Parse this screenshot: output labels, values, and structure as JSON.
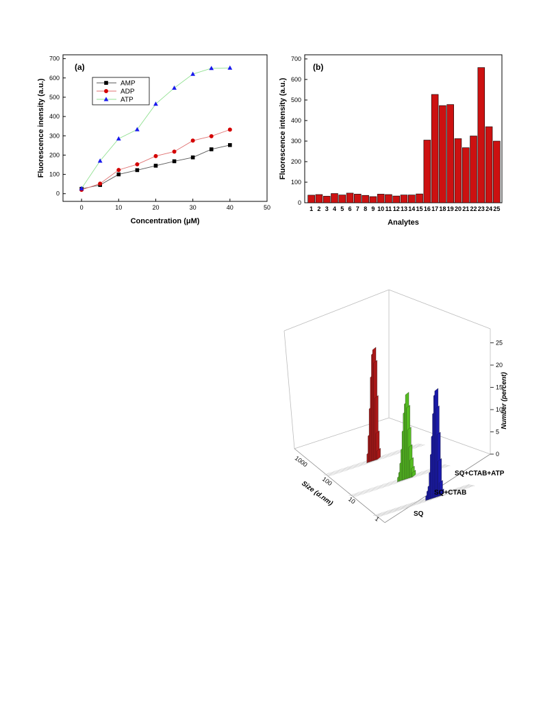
{
  "chart_data": [
    {
      "type": "line",
      "panel_label": "(a)",
      "xlabel": "Concentration (μM)",
      "ylabel": "Fluorescence inensity (a.u.)",
      "xlim": [
        -5,
        50
      ],
      "ylim": [
        -40,
        720
      ],
      "x_ticks": [
        "0",
        "10",
        "20",
        "30",
        "40",
        "50"
      ],
      "y_ticks": [
        "0",
        "100",
        "200",
        "300",
        "400",
        "500",
        "600",
        "700"
      ],
      "x": [
        0,
        5,
        10,
        15,
        20,
        25,
        30,
        35,
        40
      ],
      "legend_position": "upper-left",
      "series": [
        {
          "name": "AMP",
          "color": "#000000",
          "line_color": "#555555",
          "marker": "square",
          "values": [
            25,
            45,
            100,
            122,
            145,
            168,
            188,
            230,
            252
          ]
        },
        {
          "name": "ADP",
          "color": "#d40000",
          "line_color": "#e07070",
          "marker": "circle",
          "values": [
            20,
            52,
            123,
            152,
            195,
            218,
            275,
            298,
            332
          ]
        },
        {
          "name": "ATP",
          "color": "#1a1aee",
          "line_color": "#90e090",
          "marker": "triangle",
          "values": [
            27,
            170,
            285,
            333,
            465,
            548,
            620,
            650,
            652
          ]
        }
      ]
    },
    {
      "type": "bar",
      "panel_label": "(b)",
      "xlabel": "Analytes",
      "ylabel": "Fluorescence intensity (a.u.)",
      "ylim": [
        0,
        720
      ],
      "y_ticks": [
        "0",
        "100",
        "200",
        "300",
        "400",
        "500",
        "600",
        "700"
      ],
      "color": "#cc1111",
      "categories": [
        "1",
        "2",
        "3",
        "4",
        "5",
        "6",
        "7",
        "8",
        "9",
        "10",
        "11",
        "12",
        "13",
        "14",
        "15",
        "16",
        "17",
        "18",
        "19",
        "20",
        "21",
        "22",
        "23",
        "24",
        "25"
      ],
      "values": [
        37,
        40,
        32,
        45,
        38,
        47,
        42,
        36,
        30,
        42,
        40,
        33,
        38,
        38,
        43,
        305,
        527,
        473,
        478,
        312,
        268,
        325,
        658,
        370,
        300
      ]
    },
    {
      "type": "bar",
      "style": "3d-waterfall",
      "xlabel": "Size (d.nm)",
      "zlabel": "Number (percent)",
      "size_ticks": [
        "1",
        "10",
        "100",
        "1000"
      ],
      "z_ticks": [
        "0",
        "5",
        "10",
        "15",
        "20",
        "25"
      ],
      "zlim": [
        0,
        27
      ],
      "series": [
        {
          "name": "SQ",
          "color": "#aa1818",
          "peak_size_dnm": 1000,
          "values": [
            2,
            6,
            12,
            19,
            24,
            25,
            22,
            14,
            6,
            2
          ]
        },
        {
          "name": "SQ+CTAB",
          "color": "#55bb22",
          "peak_size_dnm": 100,
          "values": [
            1,
            2,
            4,
            7,
            11,
            15,
            17,
            19,
            16,
            11,
            7,
            4,
            2,
            1
          ]
        },
        {
          "name": "SQ+CTAB+ATP",
          "color": "#1a1aaa",
          "peak_size_dnm": 15,
          "values": [
            1,
            2,
            3,
            6,
            10,
            14,
            19,
            23,
            24,
            20,
            14,
            8,
            3,
            1
          ]
        }
      ]
    }
  ]
}
